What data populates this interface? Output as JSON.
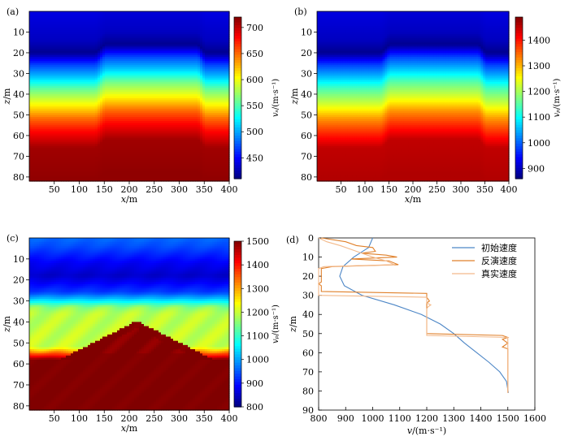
{
  "chart_data": [
    {
      "panel_label": "(a)",
      "type": "heatmap",
      "xlabel": "x/m",
      "ylabel": "z/m",
      "xlim": [
        0,
        400
      ],
      "ylim": [
        0,
        82
      ],
      "xticks": [
        50,
        100,
        150,
        200,
        250,
        300,
        350,
        400
      ],
      "yticks": [
        10,
        20,
        30,
        40,
        50,
        60,
        70,
        80
      ],
      "colorbar": {
        "label": "vₛ/(m·s⁻¹)",
        "range": [
          410,
          720
        ],
        "ticks": [
          450,
          500,
          550,
          600,
          650,
          700
        ]
      },
      "field": {
        "background_profile": [
          [
            0,
            440
          ],
          [
            14,
            430
          ],
          [
            20,
            415
          ],
          [
            26,
            470
          ],
          [
            32,
            510
          ],
          [
            38,
            560
          ],
          [
            46,
            610
          ],
          [
            52,
            650
          ],
          [
            58,
            680
          ],
          [
            66,
            710
          ],
          [
            82,
            715
          ]
        ],
        "anomaly": {
          "shape": "step",
          "x_ramp_start": [
            130,
            155
          ],
          "x_ramp_end": [
            335,
            355
          ],
          "z_shift": 4
        }
      }
    },
    {
      "panel_label": "(b)",
      "type": "heatmap",
      "xlabel": "x/m",
      "ylabel": "z/m",
      "xlim": [
        0,
        400
      ],
      "ylim": [
        0,
        82
      ],
      "xticks": [
        50,
        100,
        150,
        200,
        250,
        300,
        350,
        400
      ],
      "yticks": [
        10,
        20,
        30,
        40,
        50,
        60,
        70,
        80
      ],
      "colorbar": {
        "label": "vₚ/(m·s⁻¹)",
        "range": [
          860,
          1490
        ],
        "ticks": [
          900,
          1000,
          1100,
          1200,
          1300,
          1400
        ]
      },
      "field": {
        "background_profile": [
          [
            0,
            920
          ],
          [
            14,
            900
          ],
          [
            20,
            870
          ],
          [
            26,
            980
          ],
          [
            32,
            1060
          ],
          [
            38,
            1150
          ],
          [
            46,
            1240
          ],
          [
            52,
            1320
          ],
          [
            58,
            1380
          ],
          [
            66,
            1450
          ],
          [
            82,
            1460
          ]
        ],
        "anomaly": {
          "shape": "step",
          "x_ramp_start": [
            130,
            155
          ],
          "x_ramp_end": [
            335,
            355
          ],
          "z_shift": 4
        }
      }
    },
    {
      "panel_label": "(c)",
      "type": "heatmap",
      "xlabel": "x/m",
      "ylabel": "z/m",
      "xlim": [
        0,
        400
      ],
      "ylim": [
        0,
        82
      ],
      "xticks": [
        50,
        100,
        150,
        200,
        250,
        300,
        350,
        400
      ],
      "yticks": [
        10,
        20,
        30,
        40,
        50,
        60,
        70,
        80
      ],
      "colorbar": {
        "label": "vₚ/(m·s⁻¹)",
        "range": [
          800,
          1500
        ],
        "ticks": [
          800,
          900,
          1000,
          1100,
          1200,
          1300,
          1400,
          1500
        ]
      },
      "field": {
        "layers": [
          [
            0,
            960
          ],
          [
            4,
            940
          ],
          [
            12,
            880
          ],
          [
            18,
            850
          ],
          [
            26,
            930
          ],
          [
            30,
            1050
          ],
          [
            33,
            1160
          ],
          [
            36,
            1190
          ],
          [
            52,
            1200
          ],
          [
            55,
            1350
          ],
          [
            58,
            1500
          ],
          [
            82,
            1500
          ]
        ],
        "anomaly": {
          "shape": "triangle",
          "apex_x": 215,
          "apex_z": 41,
          "half_width": 125,
          "base_z": 56
        }
      }
    },
    {
      "panel_label": "(d)",
      "type": "line",
      "xlabel": "v/(m·s⁻¹)",
      "ylabel": "z/m",
      "xlim": [
        800,
        1600
      ],
      "ylim": [
        90,
        0
      ],
      "xticks": [
        800,
        900,
        1000,
        1100,
        1200,
        1300,
        1400,
        1500,
        1600
      ],
      "yticks": [
        0,
        10,
        20,
        30,
        40,
        50,
        60,
        70,
        80,
        90
      ],
      "legend_position": "top-right",
      "series": [
        {
          "name": "初始速度",
          "color": "#4c86c6",
          "points": [
            [
              1000,
              0
            ],
            [
              985,
              5
            ],
            [
              930,
              10
            ],
            [
              890,
              15
            ],
            [
              878,
              20
            ],
            [
              895,
              25
            ],
            [
              960,
              30
            ],
            [
              1080,
              35
            ],
            [
              1180,
              40
            ],
            [
              1250,
              45
            ],
            [
              1300,
              50
            ],
            [
              1340,
              55
            ],
            [
              1385,
              60
            ],
            [
              1430,
              65
            ],
            [
              1470,
              70
            ],
            [
              1495,
              75
            ],
            [
              1502,
              81
            ]
          ]
        },
        {
          "name": "反演速度",
          "color": "#e0802a",
          "points": [
            [
              810,
              0
            ],
            [
              900,
              2
            ],
            [
              940,
              4
            ],
            [
              1000,
              5
            ],
            [
              1010,
              7
            ],
            [
              960,
              8
            ],
            [
              1050,
              9
            ],
            [
              1090,
              10
            ],
            [
              920,
              11
            ],
            [
              1060,
              12
            ],
            [
              1095,
              14
            ],
            [
              850,
              15
            ],
            [
              810,
              16
            ],
            [
              810,
              23
            ],
            [
              800,
              24
            ],
            [
              810,
              25
            ],
            [
              810,
              28
            ],
            [
              1200,
              29
            ],
            [
              1200,
              31
            ],
            [
              1210,
              33
            ],
            [
              1200,
              34
            ],
            [
              1200,
              50
            ],
            [
              1480,
              51
            ],
            [
              1500,
              52
            ],
            [
              1480,
              53
            ],
            [
              1500,
              55
            ],
            [
              1480,
              57
            ],
            [
              1500,
              58
            ],
            [
              1500,
              81
            ]
          ]
        },
        {
          "name": "真实速度",
          "color": "#f3b98a",
          "points": [
            [
              800,
              0
            ],
            [
              830,
              2
            ],
            [
              880,
              4
            ],
            [
              920,
              6
            ],
            [
              960,
              8
            ],
            [
              1000,
              10
            ],
            [
              1050,
              12
            ],
            [
              1080,
              14
            ],
            [
              820,
              15
            ],
            [
              800,
              16
            ],
            [
              800,
              30
            ],
            [
              1200,
              31
            ],
            [
              1200,
              34
            ],
            [
              1215,
              35
            ],
            [
              1205,
              36
            ],
            [
              1200,
              37
            ],
            [
              1200,
              51
            ],
            [
              1500,
              52
            ],
            [
              1500,
              81
            ]
          ]
        }
      ]
    }
  ]
}
